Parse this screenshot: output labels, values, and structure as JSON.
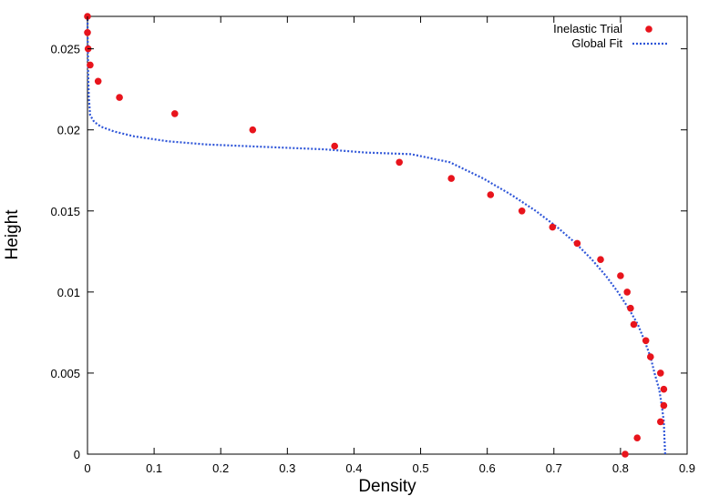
{
  "chart_data": {
    "type": "scatter",
    "title": "",
    "xlabel": "Density",
    "ylabel": "Height",
    "xlim": [
      0,
      0.9
    ],
    "ylim": [
      0,
      0.027
    ],
    "xticks": [
      0,
      0.1,
      0.2,
      0.3,
      0.4,
      0.5,
      0.6,
      0.7,
      0.8,
      0.9
    ],
    "xtick_labels": [
      "0",
      "0.1",
      "0.2",
      "0.3",
      "0.4",
      "0.5",
      "0.6",
      "0.7",
      "0.8",
      "0.9"
    ],
    "yticks": [
      0,
      0.005,
      0.01,
      0.015,
      0.02,
      0.025
    ],
    "ytick_labels": [
      "0",
      "0.005",
      "0.01",
      "0.015",
      "0.02",
      "0.025"
    ],
    "grid": false,
    "legend_position": "top-right",
    "colors": {
      "points": "#e8141c",
      "fit": "#2f56d8",
      "axis": "#000000"
    },
    "series": [
      {
        "name": "Inelastic Trial",
        "style": "points",
        "x": [
          0.807,
          0.825,
          0.86,
          0.865,
          0.865,
          0.86,
          0.845,
          0.838,
          0.82,
          0.815,
          0.81,
          0.8,
          0.77,
          0.735,
          0.698,
          0.652,
          0.605,
          0.546,
          0.468,
          0.371,
          0.248,
          0.131,
          0.048,
          0.016,
          0.004,
          0.001,
          0.0,
          0.0
        ],
        "y": [
          0.0,
          0.001,
          0.002,
          0.003,
          0.004,
          0.005,
          0.006,
          0.007,
          0.008,
          0.009,
          0.01,
          0.011,
          0.012,
          0.013,
          0.014,
          0.015,
          0.016,
          0.017,
          0.018,
          0.019,
          0.02,
          0.021,
          0.022,
          0.023,
          0.024,
          0.025,
          0.026,
          0.027
        ]
      },
      {
        "name": "Global Fit",
        "style": "dotted-line",
        "x": [
          0.867,
          0.866,
          0.865,
          0.862,
          0.858,
          0.851,
          0.845,
          0.836,
          0.826,
          0.812,
          0.796,
          0.778,
          0.757,
          0.733,
          0.705,
          0.673,
          0.636,
          0.594,
          0.544,
          0.486,
          0.417,
          0.356,
          0.296,
          0.236,
          0.178,
          0.12,
          0.07,
          0.04,
          0.02,
          0.01,
          0.004,
          0.002,
          0.001,
          0.0005,
          0.0002,
          0.0001
        ],
        "y": [
          0.0,
          0.001,
          0.002,
          0.003,
          0.004,
          0.005,
          0.006,
          0.007,
          0.008,
          0.009,
          0.01,
          0.011,
          0.012,
          0.013,
          0.014,
          0.015,
          0.016,
          0.017,
          0.018,
          0.0185,
          0.0186,
          0.0188,
          0.0189,
          0.019,
          0.0191,
          0.0193,
          0.0196,
          0.0199,
          0.0202,
          0.0205,
          0.0209,
          0.022,
          0.0235,
          0.025,
          0.026,
          0.027
        ]
      }
    ]
  }
}
